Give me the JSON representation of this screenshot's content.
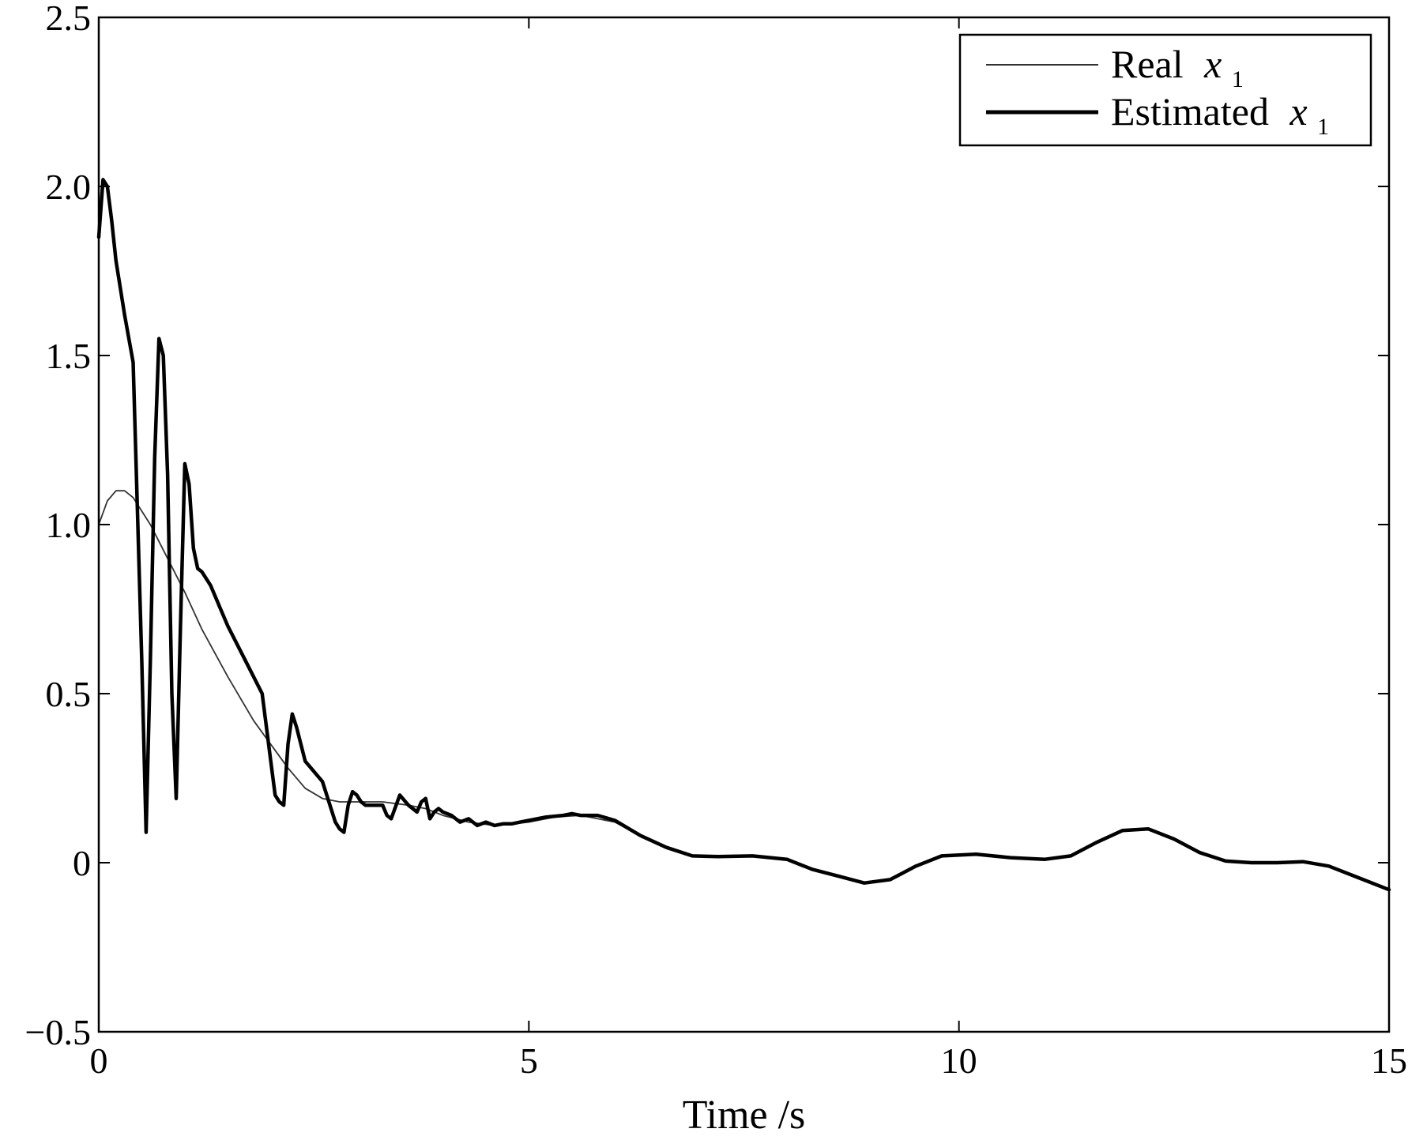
{
  "chart_data": {
    "type": "line",
    "xlabel": "Time /s",
    "ylabel": "",
    "xlim": [
      0,
      15
    ],
    "ylim": [
      -0.5,
      2.5
    ],
    "xticks": [
      {
        "value": 0,
        "label": "0"
      },
      {
        "value": 5,
        "label": "5"
      },
      {
        "value": 10,
        "label": "10"
      },
      {
        "value": 15,
        "label": "15"
      }
    ],
    "yticks": [
      {
        "value": -0.5,
        "label": "−0.5"
      },
      {
        "value": 0,
        "label": "0"
      },
      {
        "value": 0.5,
        "label": "0.5"
      },
      {
        "value": 1.0,
        "label": "1.0"
      },
      {
        "value": 1.5,
        "label": "1.5"
      },
      {
        "value": 2.0,
        "label": "2.0"
      },
      {
        "value": 2.5,
        "label": "2.5"
      }
    ],
    "grid": false,
    "legend_position": "top-right",
    "series": [
      {
        "name": "Real",
        "symbol": "x",
        "subscript": "1",
        "style": "thin",
        "color": "#333333",
        "x": [
          0,
          0.1,
          0.2,
          0.3,
          0.4,
          0.6,
          0.8,
          1.0,
          1.2,
          1.5,
          1.8,
          2.0,
          2.2,
          2.4,
          2.6,
          2.8,
          3.0,
          3.3,
          3.6,
          3.8,
          4.0,
          4.3,
          4.6,
          4.8,
          5.0,
          5.3,
          5.6,
          6.0,
          6.3,
          6.6,
          6.9,
          7.2,
          7.6,
          8.0,
          8.3,
          8.6,
          8.9,
          9.2,
          9.5,
          9.8,
          10.2,
          10.6,
          11.0,
          11.3,
          11.6,
          11.9,
          12.2,
          12.5,
          12.8,
          13.1,
          13.4,
          13.7,
          14.0,
          14.3,
          14.6,
          15.0
        ],
        "y": [
          1.0,
          1.07,
          1.1,
          1.1,
          1.08,
          1.0,
          0.9,
          0.8,
          0.69,
          0.55,
          0.42,
          0.35,
          0.28,
          0.22,
          0.19,
          0.18,
          0.18,
          0.18,
          0.17,
          0.16,
          0.14,
          0.12,
          0.11,
          0.115,
          0.12,
          0.135,
          0.14,
          0.12,
          0.08,
          0.045,
          0.02,
          0.018,
          0.02,
          0.01,
          -0.02,
          -0.04,
          -0.06,
          -0.05,
          -0.01,
          0.02,
          0.025,
          0.015,
          0.01,
          0.02,
          0.06,
          0.095,
          0.1,
          0.07,
          0.03,
          0.005,
          0.0,
          0.0,
          0.003,
          -0.01,
          -0.04,
          -0.08
        ]
      },
      {
        "name": "Estimated",
        "symbol": "x",
        "subscript": "1",
        "style": "thick",
        "color": "#000000",
        "x": [
          0,
          0.05,
          0.1,
          0.15,
          0.2,
          0.3,
          0.4,
          0.5,
          0.55,
          0.6,
          0.65,
          0.7,
          0.75,
          0.8,
          0.85,
          0.9,
          0.95,
          1.0,
          1.05,
          1.1,
          1.15,
          1.2,
          1.3,
          1.4,
          1.5,
          1.7,
          1.9,
          2.0,
          2.05,
          2.1,
          2.15,
          2.2,
          2.25,
          2.3,
          2.4,
          2.6,
          2.75,
          2.8,
          2.85,
          2.9,
          2.95,
          3.0,
          3.05,
          3.1,
          3.2,
          3.3,
          3.35,
          3.4,
          3.5,
          3.6,
          3.7,
          3.75,
          3.8,
          3.85,
          3.9,
          3.95,
          4.0,
          4.1,
          4.2,
          4.3,
          4.4,
          4.5,
          4.6,
          4.7,
          4.8,
          4.9,
          5.0,
          5.2,
          5.4,
          5.5,
          5.6,
          5.8,
          6.0,
          6.3,
          6.6,
          6.9,
          7.2,
          7.6,
          8.0,
          8.3,
          8.6,
          8.9,
          9.2,
          9.5,
          9.8,
          10.2,
          10.6,
          11.0,
          11.3,
          11.6,
          11.9,
          12.2,
          12.5,
          12.8,
          13.1,
          13.4,
          13.7,
          14.0,
          14.3,
          14.6,
          15.0
        ],
        "y": [
          1.85,
          2.02,
          2.0,
          1.9,
          1.78,
          1.62,
          1.48,
          0.6,
          0.09,
          0.6,
          1.2,
          1.55,
          1.5,
          1.15,
          0.5,
          0.19,
          0.7,
          1.18,
          1.12,
          0.93,
          0.87,
          0.86,
          0.82,
          0.76,
          0.7,
          0.6,
          0.5,
          0.3,
          0.2,
          0.18,
          0.17,
          0.35,
          0.44,
          0.4,
          0.3,
          0.24,
          0.12,
          0.1,
          0.09,
          0.17,
          0.21,
          0.2,
          0.18,
          0.17,
          0.17,
          0.17,
          0.14,
          0.13,
          0.2,
          0.17,
          0.15,
          0.18,
          0.19,
          0.13,
          0.15,
          0.16,
          0.15,
          0.14,
          0.12,
          0.13,
          0.11,
          0.12,
          0.11,
          0.115,
          0.115,
          0.12,
          0.125,
          0.135,
          0.14,
          0.145,
          0.14,
          0.14,
          0.125,
          0.08,
          0.045,
          0.02,
          0.018,
          0.02,
          0.01,
          -0.02,
          -0.04,
          -0.06,
          -0.05,
          -0.01,
          0.02,
          0.025,
          0.015,
          0.01,
          0.02,
          0.06,
          0.095,
          0.1,
          0.07,
          0.03,
          0.005,
          0.0,
          0.0,
          0.003,
          -0.01,
          -0.04,
          -0.08
        ]
      }
    ]
  }
}
